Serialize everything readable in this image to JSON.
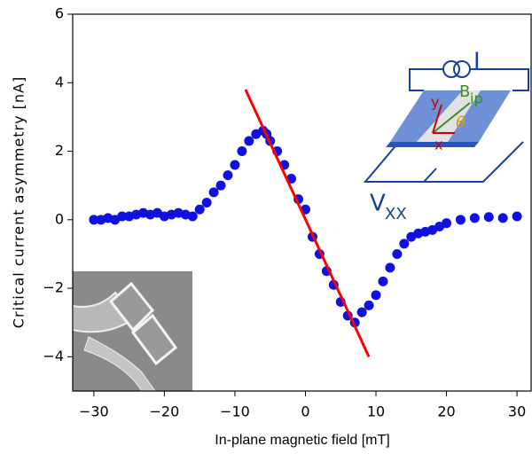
{
  "chart_data": {
    "type": "scatter",
    "xlabel": "In-plane magnetic field [mT]",
    "ylabel": "Critical current asymmetry [nA]",
    "xlim": [
      -33,
      32
    ],
    "ylim": [
      -5,
      6
    ],
    "xticks": [
      {
        "value": -30,
        "label": "−30"
      },
      {
        "value": -20,
        "label": "−20"
      },
      {
        "value": -10,
        "label": "−10"
      },
      0,
      10,
      20,
      30
    ],
    "yticks": [
      {
        "value": -4,
        "label": "−4"
      },
      {
        "value": -2,
        "label": "−2"
      },
      0,
      2,
      4,
      6
    ],
    "series": [
      {
        "color": "#1010e0",
        "x": [
          -30,
          -29,
          -28,
          -27,
          -26,
          -25,
          -24,
          -23,
          -22,
          -21,
          -20,
          -19,
          -18,
          -17,
          -16,
          -15,
          -14,
          -13,
          -12,
          -11,
          -10,
          -9,
          -8,
          -7,
          -6,
          -5.5,
          -5,
          -4,
          -3,
          -2,
          -1,
          0,
          1,
          2,
          3,
          4,
          5,
          6,
          7,
          8,
          9,
          10,
          11,
          12,
          13,
          14,
          15,
          16,
          17,
          18,
          19,
          20,
          22,
          24,
          26,
          28,
          30
        ],
        "values": [
          0,
          0,
          0.05,
          0,
          0.1,
          0.1,
          0.15,
          0.2,
          0.15,
          0.2,
          0.1,
          0.15,
          0.2,
          0.15,
          0.1,
          0.3,
          0.5,
          0.8,
          1.0,
          1.3,
          1.6,
          2.0,
          2.3,
          2.5,
          2.6,
          2.5,
          2.3,
          2.0,
          1.6,
          1.2,
          0.6,
          0.3,
          -0.5,
          -1.0,
          -1.5,
          -1.9,
          -2.4,
          -2.8,
          -3.0,
          -2.7,
          -2.5,
          -2.2,
          -1.8,
          -1.4,
          -1.0,
          -0.7,
          -0.5,
          -0.4,
          -0.35,
          -0.3,
          -0.2,
          -0.1,
          0,
          0.05,
          0.08,
          0.05,
          0.1
        ]
      }
    ],
    "fit_line": {
      "color": "#ff0000",
      "x": [
        -8.5,
        9
      ],
      "values": [
        3.8,
        -4.0
      ]
    },
    "inset_labels": {
      "current": "I",
      "field": "B",
      "field_sub": "ip",
      "y_axis": "y",
      "x_axis": "x",
      "angle": "θ",
      "voltage": "V",
      "voltage_sub": "XX"
    }
  }
}
